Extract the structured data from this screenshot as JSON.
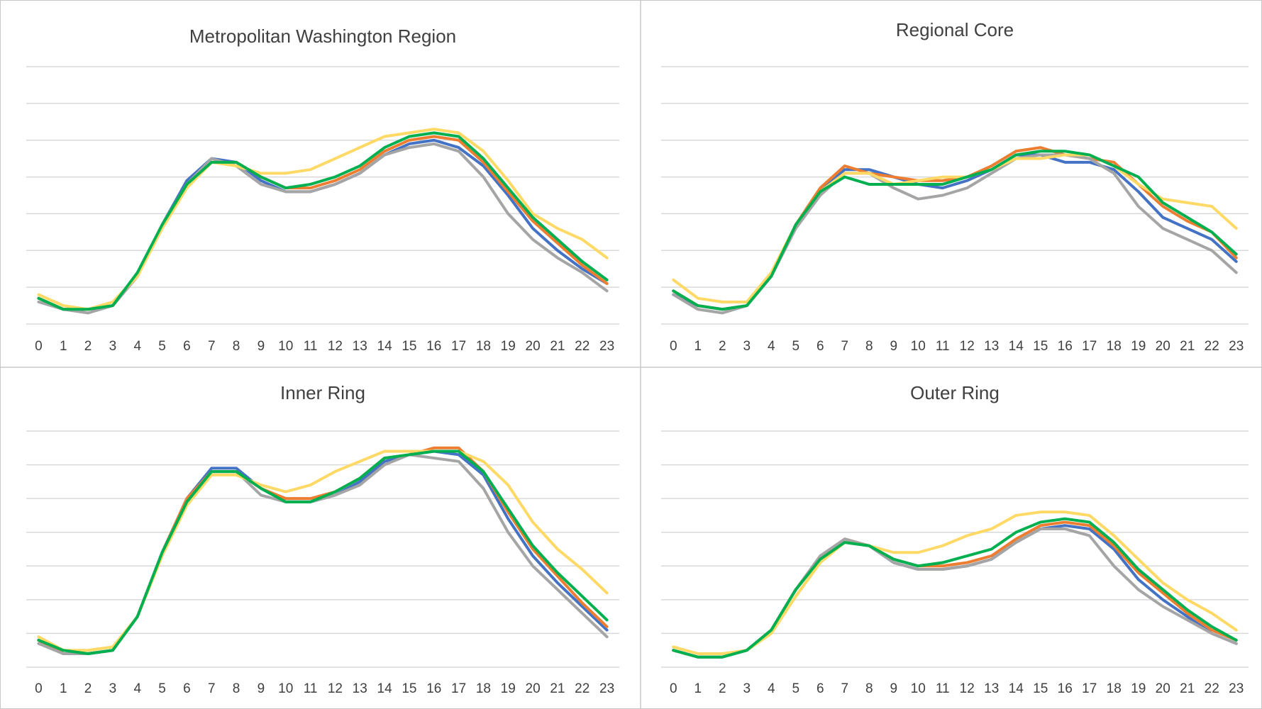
{
  "chart_data": [
    {
      "type": "line",
      "title": "Metropolitan Washington Region",
      "categories": [
        "0",
        "1",
        "2",
        "3",
        "4",
        "5",
        "6",
        "7",
        "8",
        "9",
        "10",
        "11",
        "12",
        "13",
        "14",
        "15",
        "16",
        "17",
        "18",
        "19",
        "20",
        "21",
        "22",
        "23"
      ],
      "ylim": [
        0,
        7
      ],
      "yticks": [
        0,
        1,
        2,
        3,
        4,
        5,
        6,
        7
      ],
      "grid": true,
      "series": [
        {
          "color": "#4472c4",
          "values": [
            0.7,
            0.4,
            0.4,
            0.5,
            1.3,
            2.7,
            3.9,
            4.5,
            4.4,
            3.9,
            3.6,
            3.6,
            3.8,
            4.1,
            4.6,
            4.9,
            5.0,
            4.8,
            4.3,
            3.5,
            2.6,
            2.0,
            1.5,
            1.1
          ]
        },
        {
          "color": "#ed7d31",
          "values": [
            0.7,
            0.4,
            0.4,
            0.5,
            1.3,
            2.7,
            3.8,
            4.4,
            4.4,
            4.0,
            3.7,
            3.7,
            3.9,
            4.2,
            4.7,
            5.0,
            5.1,
            5.0,
            4.4,
            3.6,
            2.8,
            2.2,
            1.6,
            1.1
          ]
        },
        {
          "color": "#a5a5a5",
          "values": [
            0.6,
            0.4,
            0.3,
            0.5,
            1.3,
            2.7,
            3.8,
            4.5,
            4.3,
            3.8,
            3.6,
            3.6,
            3.8,
            4.1,
            4.6,
            4.8,
            4.9,
            4.7,
            4.0,
            3.0,
            2.3,
            1.8,
            1.4,
            0.9
          ]
        },
        {
          "color": "#ffd966",
          "values": [
            0.8,
            0.5,
            0.4,
            0.6,
            1.3,
            2.6,
            3.7,
            4.4,
            4.3,
            4.1,
            4.1,
            4.2,
            4.5,
            4.8,
            5.1,
            5.2,
            5.3,
            5.2,
            4.7,
            3.9,
            3.0,
            2.6,
            2.3,
            1.8
          ]
        },
        {
          "color": "#00b050",
          "values": [
            0.7,
            0.4,
            0.4,
            0.5,
            1.4,
            2.7,
            3.8,
            4.4,
            4.4,
            4.0,
            3.7,
            3.8,
            4.0,
            4.3,
            4.8,
            5.1,
            5.2,
            5.1,
            4.5,
            3.7,
            2.9,
            2.3,
            1.7,
            1.2
          ]
        }
      ]
    },
    {
      "type": "line",
      "title": "Regional Core",
      "categories": [
        "0",
        "1",
        "2",
        "3",
        "4",
        "5",
        "6",
        "7",
        "8",
        "9",
        "10",
        "11",
        "12",
        "13",
        "14",
        "15",
        "16",
        "17",
        "18",
        "19",
        "20",
        "21",
        "22",
        "23"
      ],
      "ylim": [
        0,
        7
      ],
      "yticks": [
        0,
        1,
        2,
        3,
        4,
        5,
        6,
        7
      ],
      "grid": true,
      "series": [
        {
          "color": "#4472c4",
          "values": [
            0.8,
            0.5,
            0.4,
            0.5,
            1.3,
            2.7,
            3.6,
            4.2,
            4.2,
            4.0,
            3.8,
            3.7,
            3.9,
            4.2,
            4.6,
            4.6,
            4.4,
            4.4,
            4.2,
            3.6,
            2.9,
            2.6,
            2.3,
            1.7
          ]
        },
        {
          "color": "#ed7d31",
          "values": [
            0.9,
            0.5,
            0.4,
            0.5,
            1.3,
            2.7,
            3.7,
            4.3,
            4.1,
            4.0,
            3.9,
            3.9,
            4.0,
            4.3,
            4.7,
            4.8,
            4.6,
            4.5,
            4.4,
            3.8,
            3.2,
            2.8,
            2.5,
            1.8
          ]
        },
        {
          "color": "#a5a5a5",
          "values": [
            0.8,
            0.4,
            0.3,
            0.5,
            1.3,
            2.6,
            3.5,
            4.1,
            4.1,
            3.7,
            3.4,
            3.5,
            3.7,
            4.1,
            4.5,
            4.6,
            4.6,
            4.5,
            4.1,
            3.2,
            2.6,
            2.3,
            2.0,
            1.4
          ]
        },
        {
          "color": "#ffd966",
          "values": [
            1.2,
            0.7,
            0.6,
            0.6,
            1.4,
            2.7,
            3.6,
            4.1,
            4.1,
            3.8,
            3.9,
            4.0,
            4.0,
            4.2,
            4.5,
            4.5,
            4.6,
            4.6,
            4.3,
            3.8,
            3.4,
            3.3,
            3.2,
            2.6
          ]
        },
        {
          "color": "#00b050",
          "values": [
            0.9,
            0.5,
            0.4,
            0.5,
            1.3,
            2.7,
            3.6,
            4.0,
            3.8,
            3.8,
            3.8,
            3.8,
            4.0,
            4.2,
            4.6,
            4.7,
            4.7,
            4.6,
            4.3,
            4.0,
            3.3,
            2.9,
            2.5,
            1.9
          ]
        }
      ]
    },
    {
      "type": "line",
      "title": "Inner Ring",
      "categories": [
        "0",
        "1",
        "2",
        "3",
        "4",
        "5",
        "6",
        "7",
        "8",
        "9",
        "10",
        "11",
        "12",
        "13",
        "14",
        "15",
        "16",
        "17",
        "18",
        "19",
        "20",
        "21",
        "22",
        "23"
      ],
      "ylim": [
        0,
        7
      ],
      "yticks": [
        0,
        1,
        2,
        3,
        4,
        5,
        6,
        7
      ],
      "grid": true,
      "series": [
        {
          "color": "#4472c4",
          "values": [
            0.8,
            0.4,
            0.4,
            0.5,
            1.5,
            3.4,
            5.0,
            5.9,
            5.9,
            5.3,
            4.9,
            4.9,
            5.1,
            5.5,
            6.1,
            6.3,
            6.4,
            6.3,
            5.7,
            4.4,
            3.3,
            2.5,
            1.8,
            1.1
          ]
        },
        {
          "color": "#ed7d31",
          "values": [
            0.8,
            0.4,
            0.4,
            0.5,
            1.5,
            3.4,
            5.0,
            5.8,
            5.8,
            5.3,
            5.0,
            5.0,
            5.2,
            5.6,
            6.2,
            6.3,
            6.5,
            6.5,
            5.8,
            4.6,
            3.5,
            2.7,
            1.9,
            1.2
          ]
        },
        {
          "color": "#a5a5a5",
          "values": [
            0.7,
            0.4,
            0.4,
            0.5,
            1.5,
            3.4,
            4.9,
            5.8,
            5.8,
            5.1,
            4.9,
            4.9,
            5.1,
            5.4,
            6.0,
            6.3,
            6.2,
            6.1,
            5.3,
            4.0,
            3.0,
            2.3,
            1.6,
            0.9
          ]
        },
        {
          "color": "#ffd966",
          "values": [
            0.9,
            0.5,
            0.5,
            0.6,
            1.5,
            3.3,
            4.8,
            5.7,
            5.7,
            5.4,
            5.2,
            5.4,
            5.8,
            6.1,
            6.4,
            6.4,
            6.4,
            6.4,
            6.1,
            5.4,
            4.3,
            3.5,
            2.9,
            2.2
          ]
        },
        {
          "color": "#00b050",
          "values": [
            0.8,
            0.5,
            0.4,
            0.5,
            1.5,
            3.4,
            4.9,
            5.8,
            5.8,
            5.3,
            4.9,
            4.9,
            5.2,
            5.6,
            6.2,
            6.3,
            6.4,
            6.4,
            5.8,
            4.7,
            3.6,
            2.8,
            2.1,
            1.4
          ]
        }
      ]
    },
    {
      "type": "line",
      "title": "Outer Ring",
      "categories": [
        "0",
        "1",
        "2",
        "3",
        "4",
        "5",
        "6",
        "7",
        "8",
        "9",
        "10",
        "11",
        "12",
        "13",
        "14",
        "15",
        "16",
        "17",
        "18",
        "19",
        "20",
        "21",
        "22",
        "23"
      ],
      "ylim": [
        0,
        7
      ],
      "yticks": [
        0,
        1,
        2,
        3,
        4,
        5,
        6,
        7
      ],
      "grid": true,
      "series": [
        {
          "color": "#4472c4",
          "values": [
            0.5,
            0.3,
            0.3,
            0.5,
            1.1,
            2.3,
            3.2,
            3.7,
            3.6,
            3.1,
            2.9,
            2.9,
            3.0,
            3.2,
            3.7,
            4.1,
            4.2,
            4.1,
            3.5,
            2.6,
            2.0,
            1.5,
            1.0,
            0.7
          ]
        },
        {
          "color": "#ed7d31",
          "values": [
            0.5,
            0.3,
            0.3,
            0.5,
            1.1,
            2.3,
            3.2,
            3.8,
            3.6,
            3.2,
            3.0,
            3.0,
            3.1,
            3.3,
            3.8,
            4.2,
            4.3,
            4.2,
            3.6,
            2.8,
            2.2,
            1.6,
            1.1,
            0.8
          ]
        },
        {
          "color": "#a5a5a5",
          "values": [
            0.5,
            0.3,
            0.3,
            0.5,
            1.1,
            2.3,
            3.3,
            3.8,
            3.6,
            3.1,
            2.9,
            2.9,
            3.0,
            3.2,
            3.7,
            4.1,
            4.1,
            3.9,
            3.0,
            2.3,
            1.8,
            1.4,
            1.0,
            0.7
          ]
        },
        {
          "color": "#ffd966",
          "values": [
            0.6,
            0.4,
            0.4,
            0.5,
            1.0,
            2.1,
            3.1,
            3.7,
            3.6,
            3.4,
            3.4,
            3.6,
            3.9,
            4.1,
            4.5,
            4.6,
            4.6,
            4.5,
            3.9,
            3.2,
            2.5,
            2.0,
            1.6,
            1.1
          ]
        },
        {
          "color": "#00b050",
          "values": [
            0.5,
            0.3,
            0.3,
            0.5,
            1.1,
            2.3,
            3.2,
            3.7,
            3.6,
            3.2,
            3.0,
            3.1,
            3.3,
            3.5,
            4.0,
            4.3,
            4.4,
            4.3,
            3.7,
            2.9,
            2.3,
            1.7,
            1.2,
            0.8
          ]
        }
      ]
    }
  ]
}
